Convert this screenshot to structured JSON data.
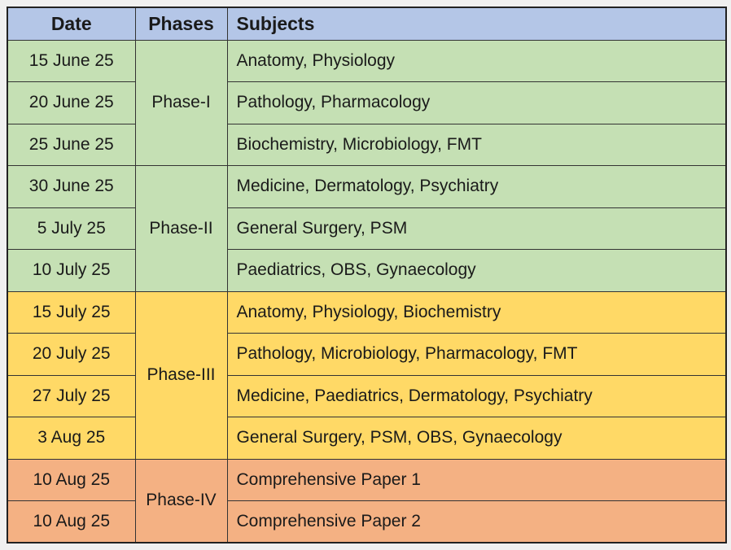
{
  "page": {
    "background": "#f0f0f0",
    "grid_line_color": "#333333",
    "text_color": "#1a1a1a"
  },
  "table": {
    "headers": [
      "Date",
      "Phases",
      "Subjects"
    ],
    "header_bg": "#B4C6E7",
    "groups": [
      {
        "phase": "Phase-I",
        "color": "#C5E0B4",
        "rows": [
          {
            "date": "15 June 25",
            "subjects": "Anatomy, Physiology"
          },
          {
            "date": "20 June 25",
            "subjects": "Pathology, Pharmacology"
          },
          {
            "date": "25 June 25",
            "subjects": "Biochemistry, Microbiology, FMT"
          }
        ]
      },
      {
        "phase": "Phase-II",
        "color": "#C5E0B4",
        "rows": [
          {
            "date": "30 June 25",
            "subjects": "Medicine, Dermatology, Psychiatry"
          },
          {
            "date": "5 July 25",
            "subjects": "General Surgery, PSM"
          },
          {
            "date": "10 July 25",
            "subjects": "Paediatrics, OBS, Gynaecology"
          }
        ]
      },
      {
        "phase": "Phase-III",
        "color": "#FFD966",
        "rows": [
          {
            "date": "15 July 25",
            "subjects": "Anatomy, Physiology, Biochemistry"
          },
          {
            "date": "20 July 25",
            "subjects": "Pathology, Microbiology, Pharmacology, FMT"
          },
          {
            "date": "27 July 25",
            "subjects": "Medicine, Paediatrics, Dermatology, Psychiatry"
          },
          {
            "date": "3 Aug 25",
            "subjects": "General Surgery, PSM, OBS, Gynaecology"
          }
        ]
      },
      {
        "phase": "Phase-IV",
        "color": "#F4B183",
        "rows": [
          {
            "date": "10 Aug 25",
            "subjects": "Comprehensive Paper 1"
          },
          {
            "date": "10 Aug 25",
            "subjects": "Comprehensive Paper 2"
          }
        ]
      }
    ]
  }
}
